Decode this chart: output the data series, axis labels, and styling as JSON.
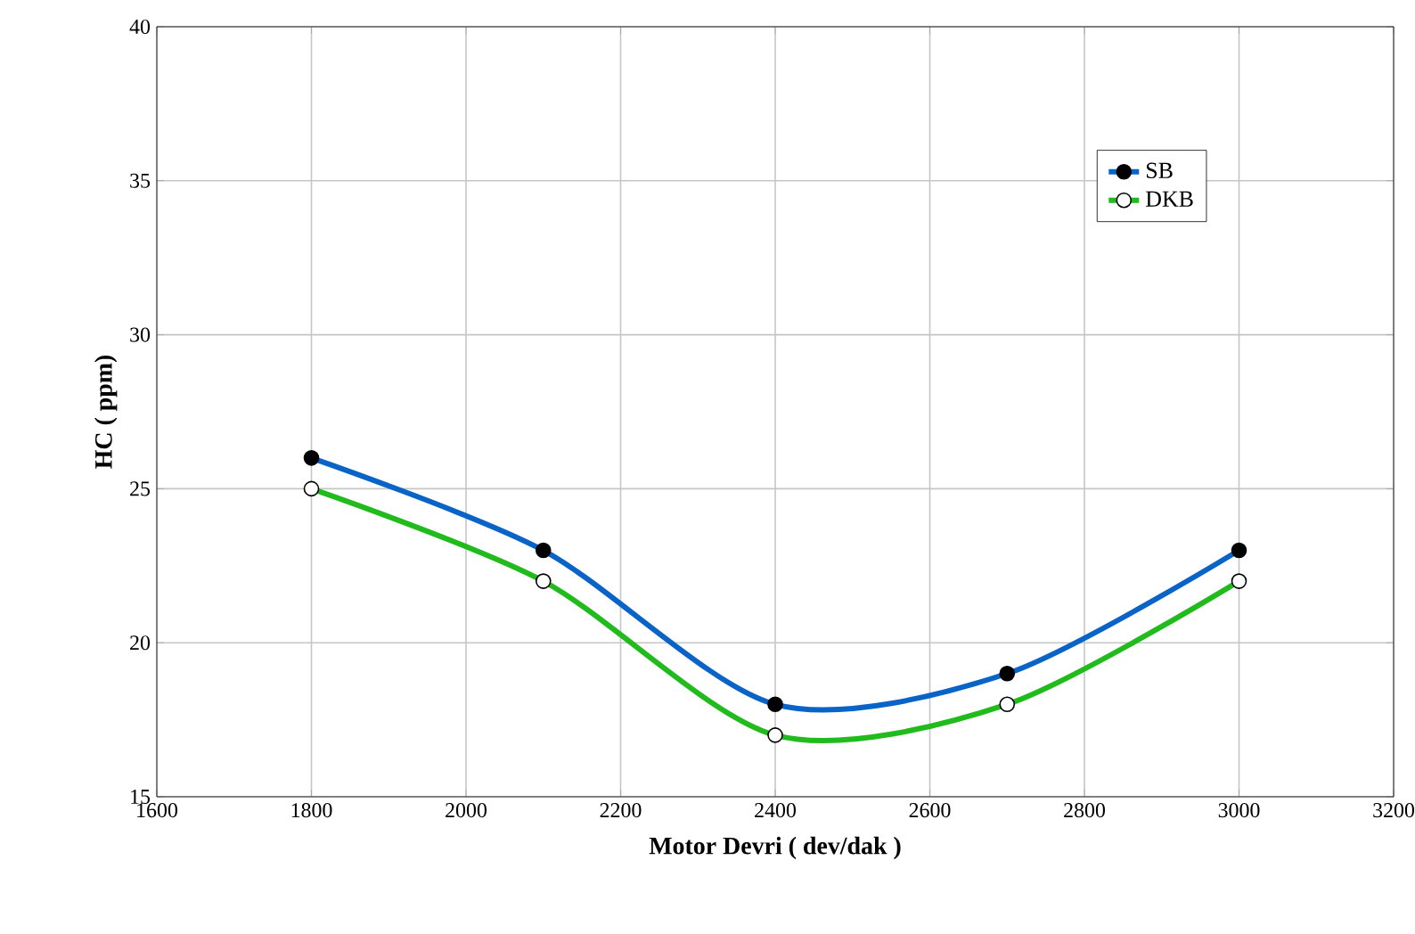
{
  "chart_data": {
    "type": "line",
    "xlabel": "Motor Devri ( dev/dak )",
    "ylabel": "HC ( ppm)",
    "x": [
      1800,
      2100,
      2400,
      2700,
      3000
    ],
    "series": [
      {
        "name": "SB",
        "color": "#0a64c8",
        "values": [
          26,
          23,
          18,
          19,
          23
        ]
      },
      {
        "name": "DKB",
        "color": "#22bb1e",
        "values": [
          25,
          22,
          17,
          18,
          22
        ]
      }
    ],
    "xlim": [
      1600,
      3200
    ],
    "xticks": [
      1600,
      1800,
      2000,
      2200,
      2400,
      2600,
      2800,
      3000,
      3200
    ],
    "ylim": [
      15,
      40
    ],
    "yticks": [
      15,
      20,
      25,
      30,
      35,
      40
    ],
    "grid": true,
    "legend": "top right",
    "marker": "circle",
    "line_style": "solid"
  }
}
